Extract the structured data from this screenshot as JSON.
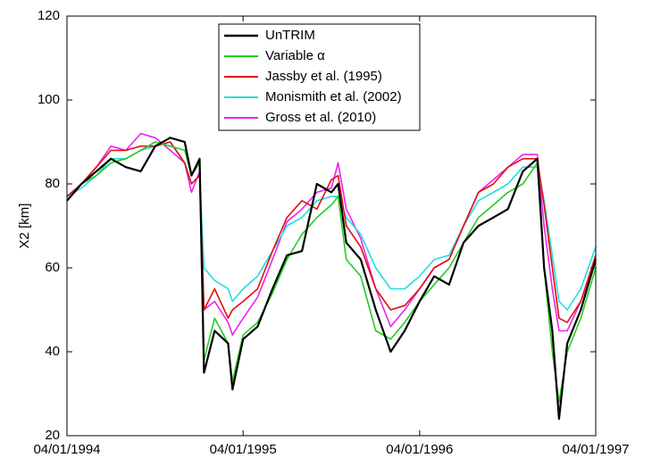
{
  "chart_data": {
    "type": "line",
    "ylabel": "X2  [km]",
    "x": [
      "1994-04-01",
      "1994-05-01",
      "1994-06-01",
      "1994-07-01",
      "1994-08-01",
      "1994-09-01",
      "1994-10-01",
      "1994-11-01",
      "1994-12-01",
      "1994-12-15",
      "1995-01-01",
      "1995-01-10",
      "1995-02-01",
      "1995-03-01",
      "1995-03-10",
      "1995-04-01",
      "1995-05-01",
      "1995-06-01",
      "1995-07-01",
      "1995-08-01",
      "1995-09-01",
      "1995-10-01",
      "1995-10-15",
      "1995-11-01",
      "1995-12-01",
      "1996-01-01",
      "1996-02-01",
      "1996-03-01",
      "1996-04-01",
      "1996-05-01",
      "1996-06-01",
      "1996-07-01",
      "1996-08-01",
      "1996-09-01",
      "1996-10-01",
      "1996-11-01",
      "1996-12-01",
      "1996-12-15",
      "1997-01-01",
      "1997-01-15",
      "1997-02-01",
      "1997-03-01",
      "1997-04-01"
    ],
    "series": [
      {
        "name": "UnTRIM",
        "color": "#000000",
        "values": [
          76,
          80,
          83,
          86,
          84,
          83,
          89,
          91,
          90,
          82,
          86,
          35,
          45,
          42,
          31,
          43,
          46,
          55,
          63,
          64,
          80,
          78,
          80,
          66,
          62,
          50,
          40,
          45,
          52,
          58,
          56,
          66,
          70,
          72,
          74,
          83,
          86,
          60,
          45,
          24,
          42,
          50,
          62
        ]
      },
      {
        "name": "Variable α",
        "color": "#22cc22",
        "values": [
          76,
          80,
          82,
          85,
          86,
          88,
          90,
          89,
          88,
          82,
          85,
          38,
          48,
          42,
          33,
          44,
          47,
          54,
          62,
          68,
          72,
          75,
          77,
          62,
          58,
          45,
          43,
          47,
          52,
          56,
          60,
          66,
          72,
          75,
          78,
          80,
          85,
          60,
          40,
          28,
          40,
          48,
          60
        ]
      },
      {
        "name": "Jassby et al. (1995)",
        "color": "#e01010",
        "values": [
          77,
          80,
          84,
          88,
          88,
          89,
          89,
          90,
          85,
          80,
          82,
          50,
          55,
          48,
          50,
          52,
          55,
          64,
          72,
          76,
          74,
          81,
          82,
          70,
          65,
          55,
          50,
          51,
          55,
          60,
          62,
          70,
          78,
          80,
          84,
          86,
          86,
          75,
          60,
          48,
          47,
          52,
          63
        ]
      },
      {
        "name": "Monismith et al. (2002)",
        "color": "#22dddd",
        "values": [
          77,
          79,
          82,
          86,
          86,
          88,
          89,
          90,
          85,
          80,
          82,
          60,
          57,
          55,
          52,
          55,
          58,
          64,
          70,
          72,
          76,
          77,
          77,
          72,
          68,
          60,
          55,
          55,
          58,
          62,
          63,
          70,
          76,
          78,
          80,
          84,
          84,
          76,
          63,
          52,
          50,
          55,
          65
        ]
      },
      {
        "name": "Gross et al. (2010)",
        "color": "#ee22ee",
        "values": [
          77,
          80,
          84,
          89,
          88,
          92,
          91,
          88,
          85,
          78,
          83,
          50,
          52,
          47,
          44,
          48,
          53,
          62,
          71,
          74,
          78,
          79,
          85,
          74,
          67,
          55,
          46,
          50,
          55,
          60,
          62,
          70,
          78,
          81,
          84,
          87,
          87,
          70,
          55,
          45,
          45,
          52,
          62
        ]
      }
    ],
    "xlim": [
      "1994-04-01",
      "1997-04-01"
    ],
    "xticks": [
      {
        "value": "1994-04-01",
        "label": "04/01/1994"
      },
      {
        "value": "1995-04-01",
        "label": "04/01/1995"
      },
      {
        "value": "1996-04-01",
        "label": "04/01/1996"
      },
      {
        "value": "1997-04-01",
        "label": "04/01/1997"
      }
    ],
    "ylim": [
      20,
      120
    ],
    "yticks": [
      20,
      40,
      60,
      80,
      100,
      120
    ],
    "grid": false,
    "legend": "top"
  }
}
